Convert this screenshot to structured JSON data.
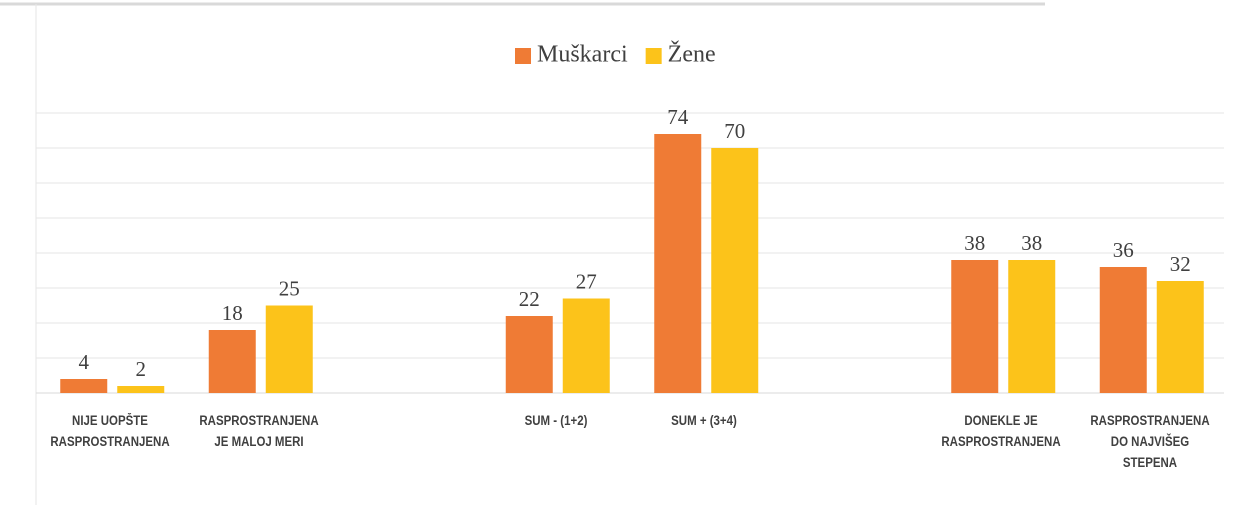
{
  "chart_data": {
    "type": "bar",
    "categories": [
      "NIJE UOPŠTE RASPROSTRANJENA",
      "RASPROSTRANJENA JE MALOJ MERI",
      null,
      "SUM - (1+2)",
      "SUM + (3+4)",
      null,
      "DONEKLE JE RASPROSTRANJENA",
      "RASPROSTRANJENA DO NAJVIŠEG STEPENA"
    ],
    "series": [
      {
        "name": "Muškarci",
        "color": "#ef7b35",
        "values": [
          4,
          18,
          null,
          22,
          74,
          null,
          38,
          36
        ]
      },
      {
        "name": "Žene",
        "color": "#fcc31a",
        "values": [
          2,
          25,
          null,
          27,
          70,
          null,
          38,
          32
        ]
      }
    ],
    "ylim": [
      0,
      80
    ],
    "yticks": [
      0,
      10,
      20,
      30,
      40,
      50,
      60,
      70,
      80
    ],
    "grid": true,
    "legend": "top"
  }
}
